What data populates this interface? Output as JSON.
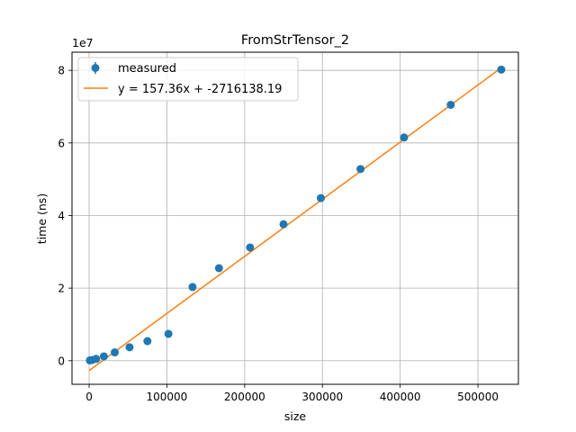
{
  "chart_data": {
    "type": "scatter",
    "title": "FromStrTensor_2",
    "xlabel": "size",
    "ylabel": "time (ns)",
    "y_exponent_label": "1e7",
    "xlim": [
      -22000,
      552000
    ],
    "ylim": [
      -6500000,
      85000000
    ],
    "x_ticks": [
      0,
      100000,
      200000,
      300000,
      400000,
      500000
    ],
    "x_tick_labels": [
      "0",
      "100000",
      "200000",
      "300000",
      "400000",
      "500000"
    ],
    "y_ticks": [
      0,
      20000000,
      40000000,
      60000000,
      80000000
    ],
    "y_tick_labels": [
      "0",
      "2",
      "4",
      "6",
      "8"
    ],
    "grid": true,
    "legend_position": "upper-left",
    "colors": {
      "measured": "#1f77b4",
      "fit": "#ff7f0e",
      "grid": "#b0b0b0"
    },
    "series": [
      {
        "name": "measured",
        "kind": "errorbar-points",
        "points": [
          {
            "x": 1000,
            "y": 100000
          },
          {
            "x": 4000,
            "y": 200000
          },
          {
            "x": 9000,
            "y": 500000
          },
          {
            "x": 19000,
            "y": 1200000
          },
          {
            "x": 33000,
            "y": 2300000
          },
          {
            "x": 52000,
            "y": 3700000
          },
          {
            "x": 75000,
            "y": 5400000
          },
          {
            "x": 102000,
            "y": 7400000
          },
          {
            "x": 133000,
            "y": 20300000
          },
          {
            "x": 167000,
            "y": 25500000
          },
          {
            "x": 207000,
            "y": 31200000
          },
          {
            "x": 250000,
            "y": 37600000
          },
          {
            "x": 298000,
            "y": 44800000
          },
          {
            "x": 349000,
            "y": 52800000
          },
          {
            "x": 405000,
            "y": 61500000
          },
          {
            "x": 465000,
            "y": 70500000
          },
          {
            "x": 530000,
            "y": 80200000
          }
        ]
      },
      {
        "name": "y = 157.36x + -2716138.19",
        "kind": "line",
        "slope": 157.36,
        "intercept": -2716138.19,
        "x_range": [
          0,
          530000
        ]
      }
    ]
  }
}
